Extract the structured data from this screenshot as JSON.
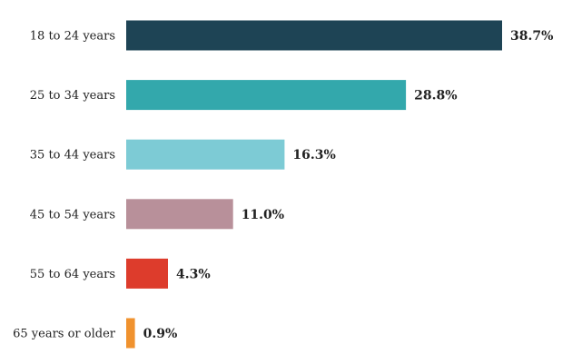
{
  "chart_data": {
    "type": "bar",
    "orientation": "horizontal",
    "categories": [
      "18 to 24 years",
      "25 to 34 years",
      "35 to 44 years",
      "45 to 54 years",
      "55 to 64 years",
      "65 years or older"
    ],
    "values": [
      38.7,
      28.8,
      16.3,
      11.0,
      4.3,
      0.9
    ],
    "value_labels": [
      "38.7%",
      "28.8%",
      "16.3%",
      "11.0%",
      "4.3%",
      "0.9%"
    ],
    "colors": [
      "#1e4455",
      "#33a8ac",
      "#7dcbd5",
      "#b8909a",
      "#dd3c2c",
      "#f0922e"
    ],
    "title": "",
    "xlabel": "",
    "ylabel": "",
    "xlim": [
      0,
      38.7
    ],
    "grid": false,
    "legend": "none"
  }
}
